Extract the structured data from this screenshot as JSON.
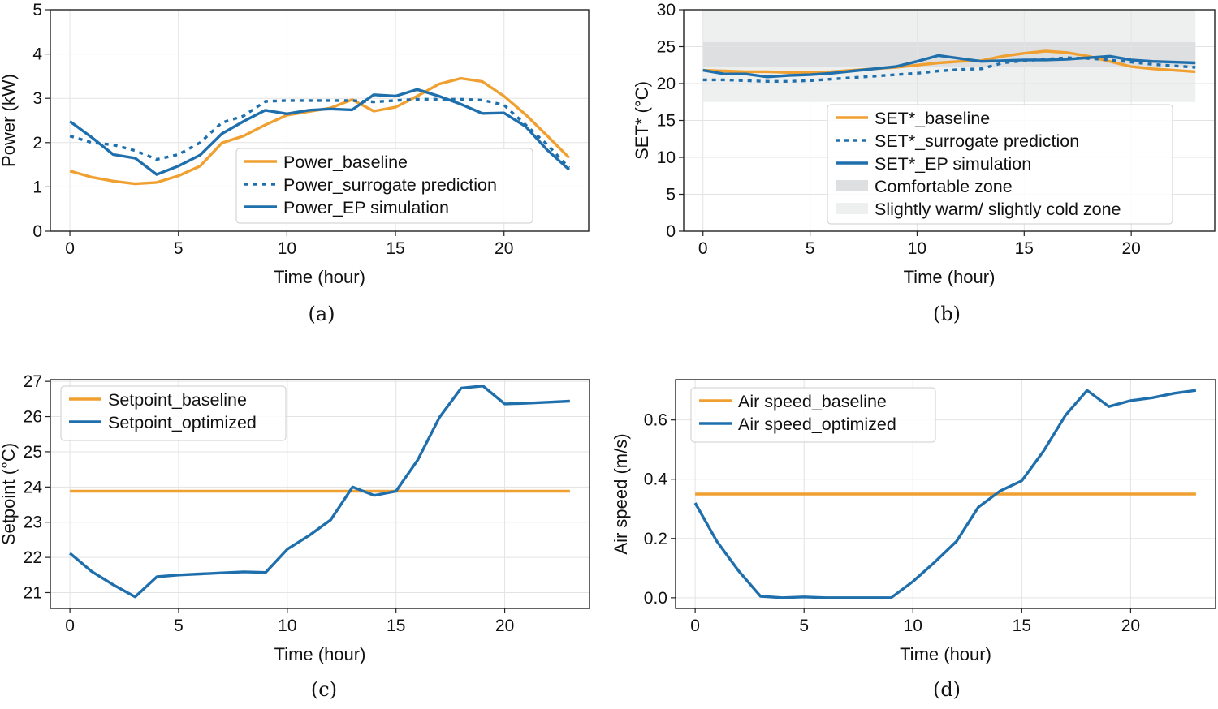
{
  "colors": {
    "orange": "#f0a030",
    "blue": "#1f6fad",
    "comfort_band": "#dedfe1",
    "slight_band": "#eef0f0",
    "legend_border": "#cccccc"
  },
  "chart_data": [
    {
      "id": "a",
      "type": "line",
      "caption": "(a)",
      "xlabel": "Time (hour)",
      "ylabel": "Power (kW)",
      "xlim": [
        -0.9,
        23.9
      ],
      "ylim": [
        0,
        5
      ],
      "xticks": [
        0,
        5,
        10,
        15,
        20
      ],
      "yticks": [
        0,
        1,
        2,
        3,
        4,
        5
      ],
      "legend_position": "lower-right",
      "series": [
        {
          "name": "Power_baseline",
          "color": "orange",
          "style": "solid",
          "x": [
            0,
            1,
            2,
            3,
            4,
            5,
            6,
            7,
            8,
            9,
            10,
            11,
            12,
            13,
            14,
            15,
            16,
            17,
            18,
            19,
            20,
            21,
            22,
            23
          ],
          "values": [
            1.36,
            1.22,
            1.13,
            1.07,
            1.1,
            1.25,
            1.47,
            1.99,
            2.15,
            2.4,
            2.62,
            2.7,
            2.78,
            2.97,
            2.71,
            2.8,
            3.05,
            3.32,
            3.45,
            3.38,
            3.05,
            2.63,
            2.15,
            1.66
          ]
        },
        {
          "name": "Power_surrogate prediction",
          "color": "blue",
          "style": "dotted",
          "x": [
            0,
            1,
            2,
            3,
            4,
            5,
            6,
            7,
            8,
            9,
            10,
            11,
            12,
            13,
            14,
            15,
            16,
            17,
            18,
            19,
            20,
            21,
            22,
            23
          ],
          "values": [
            2.15,
            2.0,
            1.95,
            1.82,
            1.62,
            1.73,
            2.0,
            2.45,
            2.6,
            2.93,
            2.95,
            2.95,
            2.95,
            2.95,
            2.92,
            2.95,
            2.98,
            2.98,
            2.98,
            2.96,
            2.85,
            2.4,
            1.95,
            1.43
          ]
        },
        {
          "name": "Power_EP simulation",
          "color": "blue",
          "style": "solid",
          "x": [
            0,
            1,
            2,
            3,
            4,
            5,
            6,
            7,
            8,
            9,
            10,
            11,
            12,
            13,
            14,
            15,
            16,
            17,
            18,
            19,
            20,
            21,
            22,
            23
          ],
          "values": [
            2.48,
            2.12,
            1.73,
            1.65,
            1.28,
            1.47,
            1.72,
            2.2,
            2.48,
            2.73,
            2.65,
            2.73,
            2.76,
            2.74,
            3.08,
            3.05,
            3.2,
            3.05,
            2.87,
            2.66,
            2.67,
            2.36,
            1.83,
            1.39
          ]
        }
      ]
    },
    {
      "id": "b",
      "type": "line",
      "caption": "(b)",
      "xlabel": "Time (hour)",
      "ylabel": "SET* (°C)",
      "xlim": [
        -0.9,
        23.9
      ],
      "ylim": [
        0,
        30
      ],
      "xticks": [
        0,
        5,
        10,
        15,
        20
      ],
      "yticks": [
        0,
        5,
        10,
        15,
        20,
        25,
        30
      ],
      "legend_position": "lower-right",
      "bands": [
        {
          "name": "Slightly warm/ slightly cold zone",
          "color": "slight_band",
          "y0": 17.5,
          "y1": 30.0,
          "x0": 0,
          "x1": 23
        },
        {
          "name": "Comfortable zone",
          "color": "comfort_band",
          "y0": 22.2,
          "y1": 25.6,
          "x0": 0,
          "x1": 23
        }
      ],
      "series": [
        {
          "name": "SET*_baseline",
          "color": "orange",
          "style": "solid",
          "x": [
            0,
            1,
            2,
            3,
            4,
            5,
            6,
            7,
            8,
            9,
            10,
            11,
            12,
            13,
            14,
            15,
            16,
            17,
            18,
            19,
            20,
            21,
            22,
            23
          ],
          "values": [
            21.8,
            21.7,
            21.6,
            21.6,
            21.5,
            21.5,
            21.6,
            21.8,
            22.0,
            22.2,
            22.5,
            22.8,
            23.0,
            23.1,
            23.7,
            24.1,
            24.4,
            24.2,
            23.7,
            23.0,
            22.3,
            22.0,
            21.8,
            21.6
          ]
        },
        {
          "name": "SET*_surrogate prediction",
          "color": "blue",
          "style": "dotted",
          "x": [
            0,
            1,
            2,
            3,
            4,
            5,
            6,
            7,
            8,
            9,
            10,
            11,
            12,
            13,
            14,
            15,
            16,
            17,
            18,
            19,
            20,
            21,
            22,
            23
          ],
          "values": [
            20.5,
            20.5,
            20.4,
            20.3,
            20.3,
            20.4,
            20.6,
            20.8,
            21.0,
            21.2,
            21.4,
            21.7,
            21.9,
            22.0,
            22.8,
            23.1,
            23.3,
            23.5,
            23.4,
            23.2,
            22.9,
            22.6,
            22.4,
            22.2
          ]
        },
        {
          "name": "SET*_EP simulation",
          "color": "blue",
          "style": "solid",
          "x": [
            0,
            1,
            2,
            3,
            4,
            5,
            6,
            7,
            8,
            9,
            10,
            11,
            12,
            13,
            14,
            15,
            16,
            17,
            18,
            19,
            20,
            21,
            22,
            23
          ],
          "values": [
            21.8,
            21.3,
            21.3,
            20.9,
            21.1,
            21.2,
            21.4,
            21.7,
            22.0,
            22.3,
            23.0,
            23.8,
            23.4,
            23.0,
            23.1,
            23.2,
            23.2,
            23.3,
            23.5,
            23.7,
            23.2,
            23.0,
            22.9,
            22.8
          ]
        }
      ]
    },
    {
      "id": "c",
      "type": "line",
      "caption": "(c)",
      "xlabel": "Time (hour)",
      "ylabel": "Setpoint (°C)",
      "xlim": [
        -0.9,
        23.9
      ],
      "ylim": [
        20.55,
        27.05
      ],
      "xticks": [
        0,
        5,
        10,
        15,
        20
      ],
      "yticks": [
        21,
        22,
        23,
        24,
        25,
        26,
        27
      ],
      "legend_position": "top-left",
      "series": [
        {
          "name": "Setpoint_baseline",
          "color": "orange",
          "style": "solid",
          "x": [
            0,
            1,
            2,
            3,
            4,
            5,
            6,
            7,
            8,
            9,
            10,
            11,
            12,
            13,
            14,
            15,
            16,
            17,
            18,
            19,
            20,
            21,
            22,
            23
          ],
          "values": [
            23.88,
            23.88,
            23.88,
            23.88,
            23.88,
            23.88,
            23.88,
            23.88,
            23.88,
            23.88,
            23.88,
            23.88,
            23.88,
            23.88,
            23.88,
            23.88,
            23.88,
            23.88,
            23.88,
            23.88,
            23.88,
            23.88,
            23.88,
            23.88
          ]
        },
        {
          "name": "Setpoint_optimized",
          "color": "blue",
          "style": "solid",
          "x": [
            0,
            1,
            2,
            3,
            4,
            5,
            6,
            7,
            8,
            9,
            10,
            11,
            12,
            13,
            14,
            15,
            16,
            17,
            18,
            19,
            20,
            21,
            22,
            23
          ],
          "values": [
            22.12,
            21.6,
            21.22,
            20.88,
            21.45,
            21.5,
            21.53,
            21.56,
            21.59,
            21.57,
            22.23,
            22.62,
            23.07,
            24.0,
            23.76,
            23.88,
            24.77,
            25.98,
            26.81,
            26.87,
            26.36,
            26.38,
            26.41,
            26.44
          ]
        }
      ]
    },
    {
      "id": "d",
      "type": "line",
      "caption": "(d)",
      "xlabel": "Time (hour)",
      "ylabel": "Air speed (m/s)",
      "xlim": [
        -0.9,
        23.9
      ],
      "ylim": [
        -0.036,
        0.736
      ],
      "xticks": [
        0,
        5,
        10,
        15,
        20
      ],
      "yticks": [
        "0.0",
        "0.2",
        "0.4",
        "0.6"
      ],
      "legend_position": "top-left",
      "series": [
        {
          "name": "Air speed_baseline",
          "color": "orange",
          "style": "solid",
          "x": [
            0,
            1,
            2,
            3,
            4,
            5,
            6,
            7,
            8,
            9,
            10,
            11,
            12,
            13,
            14,
            15,
            16,
            17,
            18,
            19,
            20,
            21,
            22,
            23
          ],
          "values": [
            0.35,
            0.35,
            0.35,
            0.35,
            0.35,
            0.35,
            0.35,
            0.35,
            0.35,
            0.35,
            0.35,
            0.35,
            0.35,
            0.35,
            0.35,
            0.35,
            0.35,
            0.35,
            0.35,
            0.35,
            0.35,
            0.35,
            0.35,
            0.35
          ]
        },
        {
          "name": "Air speed_optimized",
          "color": "blue",
          "style": "solid",
          "x": [
            0,
            1,
            2,
            3,
            4,
            5,
            6,
            7,
            8,
            9,
            10,
            11,
            12,
            13,
            14,
            15,
            16,
            17,
            18,
            19,
            20,
            21,
            22,
            23
          ],
          "values": [
            0.32,
            0.19,
            0.09,
            0.005,
            0.0,
            0.003,
            0.0,
            0.0,
            0.0,
            0.0,
            0.055,
            0.12,
            0.19,
            0.305,
            0.36,
            0.395,
            0.495,
            0.615,
            0.7,
            0.645,
            0.665,
            0.675,
            0.69,
            0.7
          ]
        }
      ]
    }
  ]
}
